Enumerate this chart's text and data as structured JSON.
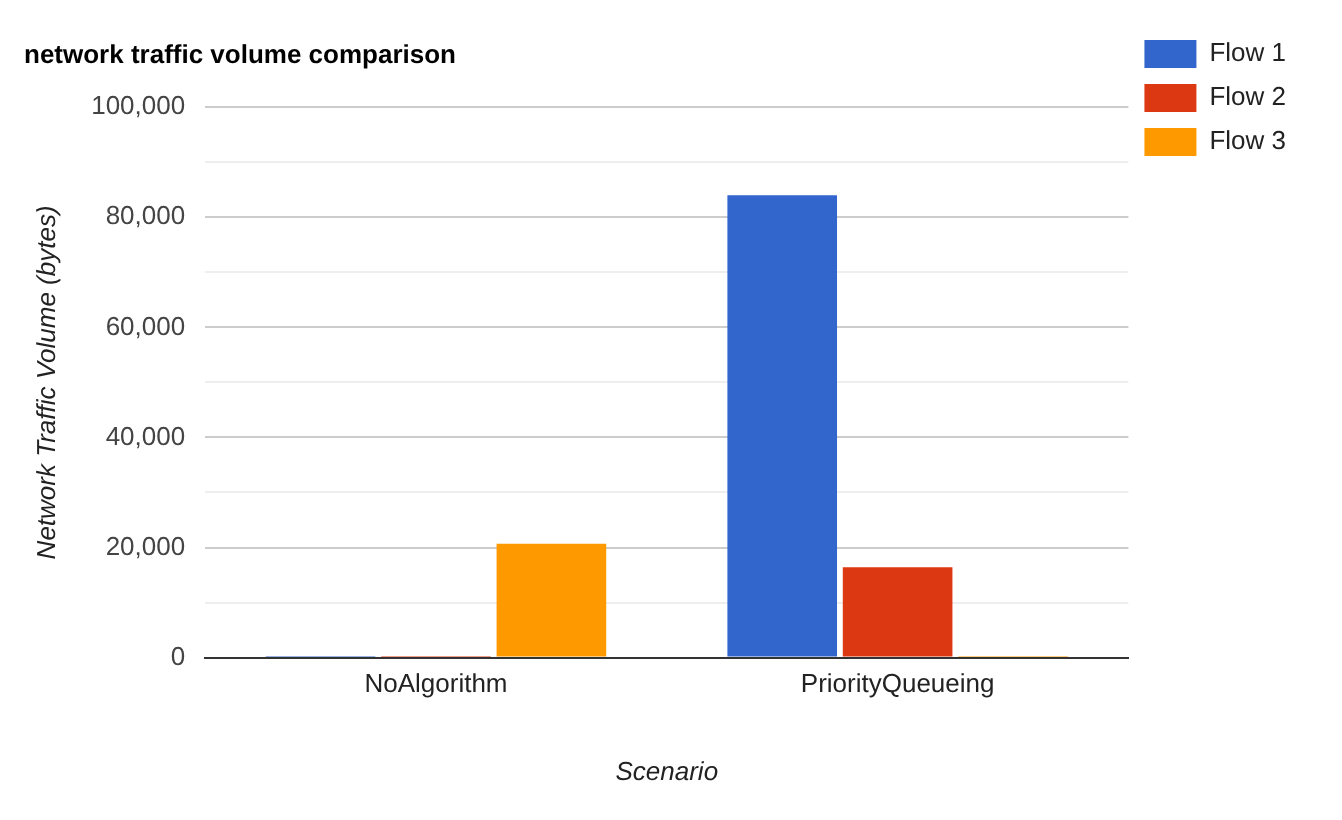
{
  "chart_data": {
    "type": "bar",
    "title": "network traffic volume comparison",
    "xlabel": "Scenario",
    "ylabel": "Network Traffic Volume (bytes)",
    "categories": [
      "NoAlgorithm",
      "PriorityQueueing"
    ],
    "series": [
      {
        "name": "Flow 1",
        "color": "#3366cc",
        "values": [
          300,
          84000
        ]
      },
      {
        "name": "Flow 2",
        "color": "#dc3912",
        "values": [
          300,
          16400
        ]
      },
      {
        "name": "Flow 3",
        "color": "#ff9900",
        "values": [
          20700,
          300
        ]
      }
    ],
    "ylim": [
      0,
      100000
    ],
    "yticks": [
      0,
      {
        "value": 10000,
        "label": null
      },
      {
        "value": 20000,
        "label": "20,000"
      },
      {
        "value": 30000,
        "label": null
      },
      {
        "value": 40000,
        "label": "40,000"
      },
      {
        "value": 50000,
        "label": null
      },
      {
        "value": 60000,
        "label": "60,000"
      },
      {
        "value": 70000,
        "label": null
      },
      {
        "value": 80000,
        "label": "80,000"
      },
      {
        "value": 90000,
        "label": null
      },
      {
        "value": 100000,
        "label": "100,000"
      }
    ],
    "grid": "y",
    "legend": "right"
  }
}
